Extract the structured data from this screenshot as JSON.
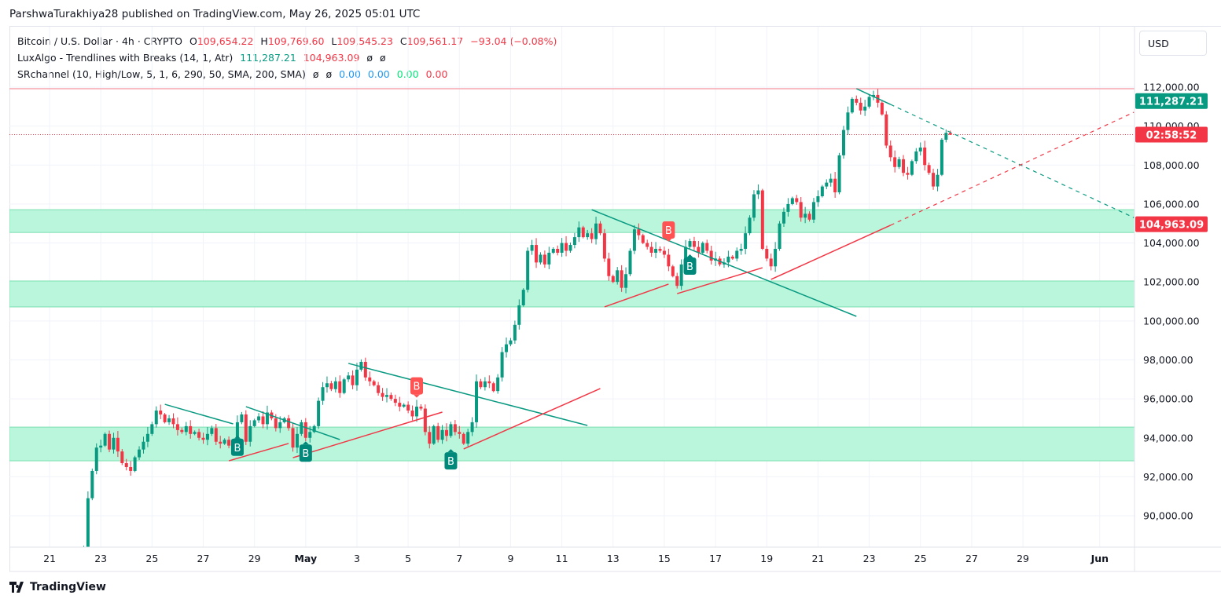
{
  "header": {
    "published": "ParshwaTurakhiya28 published on TradingView.com, May 26, 2025 05:01 UTC"
  },
  "legend": {
    "symbol": "Bitcoin / U.S. Dollar · 4h · CRYPTO",
    "o_label": "O",
    "o": "109,654.22",
    "h_label": "H",
    "h": "109,769.60",
    "l_label": "L",
    "l": "109,545.23",
    "c_label": "C",
    "c": "109,561.17",
    "change": "−93.04 (−0.08%)",
    "ind1_name": "LuxAlgo - Trendlines with Breaks (14, 1, Atr)",
    "ind1_v1": "111,287.21",
    "ind1_v2": "104,963.09",
    "ind1_v3": "ø",
    "ind1_v4": "ø",
    "ind2_name": "SRchannel (10, High/Low, 5, 1, 6, 290, 50, SMA, 200, SMA)",
    "ind2_v1": "ø",
    "ind2_v2": "ø",
    "ind2_v3": "0.00",
    "ind2_v4": "0.00",
    "ind2_v5": "0.00",
    "ind2_v6": "0.00"
  },
  "currency": "USD",
  "footer": {
    "brand": "TradingView"
  },
  "colors": {
    "up": "#089981",
    "down": "#f23645",
    "zone": "#b9f6dc",
    "zone_border": "#7be0b0",
    "resistance_line": "#f7a5ad"
  },
  "chart_data": {
    "type": "candlestick",
    "interval": "4h",
    "ylim": [
      88500,
      112800
    ],
    "grid": true,
    "y_ticks": [
      112000,
      110000,
      108000,
      106000,
      104000,
      102000,
      100000,
      98000,
      96000,
      94000,
      92000,
      90000
    ],
    "y_tick_labels": [
      "112,000.00",
      "110,000.00",
      "108,000.00",
      "106,000.00",
      "104,000.00",
      "102,000.00",
      "100,000.00",
      "98,000.00",
      "96,000.00",
      "94,000.00",
      "92,000.00",
      "90,000.00"
    ],
    "x_ticks": [
      {
        "label": "21",
        "date": "2025-04-21"
      },
      {
        "label": "23",
        "date": "2025-04-23"
      },
      {
        "label": "25",
        "date": "2025-04-25"
      },
      {
        "label": "27",
        "date": "2025-04-27"
      },
      {
        "label": "29",
        "date": "2025-04-29"
      },
      {
        "label": "May",
        "date": "2025-05-01"
      },
      {
        "label": "3",
        "date": "2025-05-03"
      },
      {
        "label": "5",
        "date": "2025-05-05"
      },
      {
        "label": "7",
        "date": "2025-05-07"
      },
      {
        "label": "9",
        "date": "2025-05-09"
      },
      {
        "label": "11",
        "date": "2025-05-11"
      },
      {
        "label": "13",
        "date": "2025-05-13"
      },
      {
        "label": "15",
        "date": "2025-05-15"
      },
      {
        "label": "17",
        "date": "2025-05-17"
      },
      {
        "label": "19",
        "date": "2025-05-19"
      },
      {
        "label": "21",
        "date": "2025-05-21"
      },
      {
        "label": "23",
        "date": "2025-05-23"
      },
      {
        "label": "25",
        "date": "2025-05-25"
      },
      {
        "label": "27",
        "date": "2025-05-27"
      },
      {
        "label": "29",
        "date": "2025-05-29"
      },
      {
        "label": "Jun",
        "date": "2025-06-01"
      }
    ],
    "candles_4h_closes": [
      {
        "date": "2025-04-22",
        "closes": [
          88000,
          87900,
          88200,
          90900,
          92300,
          93500
        ]
      },
      {
        "date": "2025-04-23",
        "closes": [
          93600,
          94200,
          93400,
          94000,
          93300,
          92700
        ]
      },
      {
        "date": "2025-04-24",
        "closes": [
          92500,
          92300,
          93000,
          93400,
          93800,
          94200
        ]
      },
      {
        "date": "2025-04-25",
        "closes": [
          94700,
          95400,
          95200,
          94800,
          95000,
          94700
        ]
      },
      {
        "date": "2025-04-26",
        "closes": [
          94400,
          94300,
          94600,
          94200,
          94300,
          94000
        ]
      },
      {
        "date": "2025-04-27",
        "closes": [
          93900,
          94200,
          94500,
          93800,
          93700,
          93900
        ]
      },
      {
        "date": "2025-04-28",
        "closes": [
          93600,
          93500,
          94800,
          95200,
          93800,
          94600
        ]
      },
      {
        "date": "2025-04-29",
        "closes": [
          94900,
          95100,
          94700,
          95300,
          95000,
          94500
        ]
      },
      {
        "date": "2025-04-30",
        "closes": [
          94800,
          95000,
          94500,
          93500,
          94200,
          94800
        ]
      },
      {
        "date": "2025-05-01",
        "closes": [
          94000,
          94300,
          94600,
          95900,
          96600,
          96800
        ]
      },
      {
        "date": "2025-05-02",
        "closes": [
          96500,
          96900,
          96300,
          97000,
          97200,
          96700
        ]
      },
      {
        "date": "2025-05-03",
        "closes": [
          97500,
          97900,
          97100,
          96900,
          96700,
          96300
        ]
      },
      {
        "date": "2025-05-04",
        "closes": [
          96100,
          96200,
          96000,
          95800,
          95600,
          95700
        ]
      },
      {
        "date": "2025-05-05",
        "closes": [
          95400,
          95100,
          95600,
          95500,
          94300,
          93700
        ]
      },
      {
        "date": "2025-05-06",
        "closes": [
          94600,
          93900,
          94400,
          94100,
          94700,
          94300
        ]
      },
      {
        "date": "2025-05-07",
        "closes": [
          94200,
          93700,
          94300,
          94800,
          96900,
          96600
        ]
      },
      {
        "date": "2025-05-08",
        "closes": [
          96900,
          96800,
          96400,
          97100,
          98400,
          98800
        ]
      },
      {
        "date": "2025-05-09",
        "closes": [
          99000,
          99800,
          100800,
          101600,
          103600,
          103900
        ]
      },
      {
        "date": "2025-05-10",
        "closes": [
          103000,
          103400,
          102900,
          103500,
          103700,
          103500
        ]
      },
      {
        "date": "2025-05-11",
        "closes": [
          104000,
          103600,
          103900,
          104300,
          104800,
          104300
        ]
      },
      {
        "date": "2025-05-12",
        "closes": [
          104500,
          104200,
          105000,
          104500,
          103200,
          102300
        ]
      },
      {
        "date": "2025-05-13",
        "closes": [
          102000,
          102600,
          101700,
          102400,
          103600,
          104700
        ]
      },
      {
        "date": "2025-05-14",
        "closes": [
          104400,
          104000,
          103800,
          103500,
          103700,
          103600
        ]
      },
      {
        "date": "2025-05-15",
        "closes": [
          103400,
          102800,
          102300,
          101800,
          102900,
          103800
        ]
      },
      {
        "date": "2025-05-16",
        "closes": [
          104100,
          103800,
          103500,
          104000,
          103600,
          103100
        ]
      },
      {
        "date": "2025-05-17",
        "closes": [
          103200,
          102900,
          103000,
          103300,
          103200,
          103600
        ]
      },
      {
        "date": "2025-05-18",
        "closes": [
          103700,
          104500,
          105300,
          106500,
          106700,
          103700
        ]
      },
      {
        "date": "2025-05-19",
        "closes": [
          103200,
          102800,
          103700,
          105000,
          105600,
          106000
        ]
      },
      {
        "date": "2025-05-20",
        "closes": [
          106300,
          106100,
          105300,
          105500,
          105200,
          106100
        ]
      },
      {
        "date": "2025-05-21",
        "closes": [
          106400,
          106900,
          107100,
          107300,
          106600,
          108500
        ]
      },
      {
        "date": "2025-05-22",
        "closes": [
          109800,
          110700,
          111400,
          111200,
          110800,
          111000
        ]
      },
      {
        "date": "2025-05-23",
        "closes": [
          111500,
          111600,
          111200,
          110600,
          109000,
          108400
        ]
      },
      {
        "date": "2025-05-24",
        "closes": [
          107900,
          108300,
          107600,
          107500,
          108200,
          108700
        ]
      },
      {
        "date": "2025-05-25",
        "closes": [
          108900,
          108000,
          107600,
          106900,
          107500,
          109300
        ]
      },
      {
        "date": "2025-05-26",
        "closes": [
          109654.22,
          109561.17
        ]
      }
    ],
    "last_candle": {
      "open": 109654.22,
      "high": 109769.6,
      "low": 109545.23,
      "close": 109561.17
    },
    "sr_zones": [
      [
        104540,
        105710
      ],
      [
        100720,
        102050
      ],
      [
        92820,
        94550
      ]
    ],
    "resistance_level": 111920,
    "current_price": 109561.17,
    "trendlines_down": [
      {
        "from": [
          "2025-04-25T12:00",
          95720
        ],
        "to": [
          "2025-04-28T04:00",
          94715
        ]
      },
      {
        "from": [
          "2025-04-28T16:00",
          95600
        ],
        "to": [
          "2025-05-02T08:00",
          93910
        ]
      },
      {
        "from": [
          "2025-05-02T16:00",
          97820
        ],
        "to": [
          "2025-05-12T00:00",
          94635
        ]
      },
      {
        "from": [
          "2025-05-12T04:00",
          105710
        ],
        "to": [
          "2025-05-22T12:00",
          100235
        ]
      },
      {
        "from": [
          "2025-05-22T12:00",
          111920
        ],
        "to": [
          "2025-05-23T20:00",
          111110
        ],
        "extend_to": [
          "2025-06-02T08:00",
          105300
        ]
      }
    ],
    "trendlines_up": [
      {
        "from": [
          "2025-04-28T00:00",
          92820
        ],
        "to": [
          "2025-04-30T08:00",
          93710
        ]
      },
      {
        "from": [
          "2025-04-30T12:00",
          92980
        ],
        "to": [
          "2025-05-06T08:00",
          95320
        ]
      },
      {
        "from": [
          "2025-05-07T04:00",
          93430
        ],
        "to": [
          "2025-05-12T12:00",
          96530
        ]
      },
      {
        "from": [
          "2025-05-12T16:00",
          100720
        ],
        "to": [
          "2025-05-15T04:00",
          101890
        ]
      },
      {
        "from": [
          "2025-05-15T12:00",
          101400
        ],
        "to": [
          "2025-05-18T20:00",
          102730
        ]
      },
      {
        "from": [
          "2025-05-19T04:00",
          102130
        ],
        "to": [
          "2025-05-23T20:00",
          104910
        ],
        "extend_to": [
          "2025-06-02T08:00",
          110710
        ]
      }
    ],
    "break_labels": [
      {
        "text": "B",
        "type": "up",
        "time": "2025-04-28T08:00",
        "price": 94200
      },
      {
        "text": "B",
        "type": "up",
        "time": "2025-05-01T00:00",
        "price": 93900
      },
      {
        "text": "B",
        "type": "down",
        "time": "2025-05-05T08:00",
        "price": 95900
      },
      {
        "text": "B",
        "type": "up",
        "time": "2025-05-06T16:00",
        "price": 93500
      },
      {
        "text": "B",
        "type": "down",
        "time": "2025-05-15T04:00",
        "price": 103900
      },
      {
        "text": "B",
        "type": "up",
        "time": "2025-05-16T00:00",
        "price": 103500
      }
    ],
    "price_tags": [
      {
        "text": "111,287.21",
        "value": 111287.21,
        "color": "#089981"
      },
      {
        "text": "02:58:52",
        "value": 109561.17,
        "color": "#f23645"
      },
      {
        "text": "104,963.09",
        "value": 104963.09,
        "color": "#f23645"
      }
    ]
  }
}
